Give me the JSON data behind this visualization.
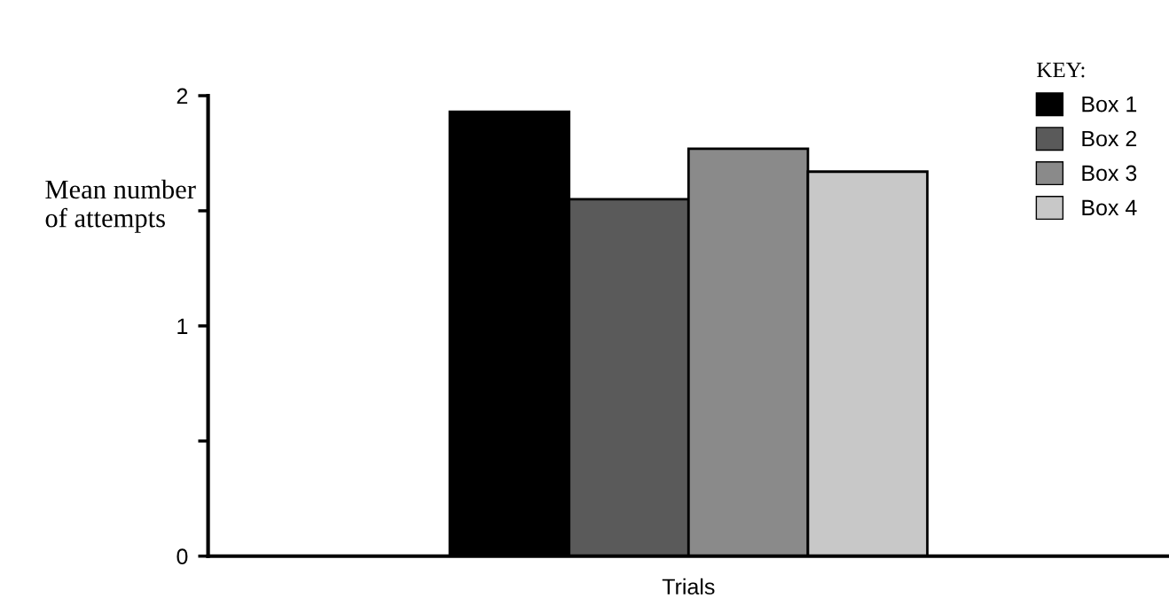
{
  "chart_data": {
    "type": "bar",
    "xlabel": "Trials",
    "ylabel": "Mean number\nof attempts",
    "legend_title": "KEY:",
    "legend": "top right",
    "categories": [
      null
    ],
    "series": [
      {
        "name": "Box 1",
        "color": "#000000",
        "values": [
          1.93
        ]
      },
      {
        "name": "Box 2",
        "color": "#5a5a5a",
        "values": [
          1.55
        ]
      },
      {
        "name": "Box 3",
        "color": "#8a8a8a",
        "values": [
          1.77
        ]
      },
      {
        "name": "Box 4",
        "color": "#c8c8c8",
        "values": [
          1.67
        ]
      }
    ],
    "ylim": [
      0,
      2
    ],
    "yticks": [
      0,
      {
        "value": 0.5,
        "label": null
      },
      1,
      {
        "value": 1.5,
        "label": null
      },
      2
    ],
    "grid": false
  }
}
